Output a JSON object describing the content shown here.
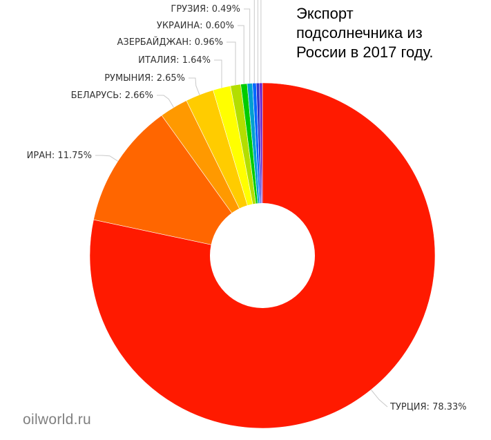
{
  "chart_data": {
    "type": "pie",
    "donut": true,
    "title_lines": [
      "Экспорт",
      "подсолнечника из",
      "России в 2017 году."
    ],
    "slices": [
      {
        "label": "ТУРЦИЯ",
        "value": 78.33,
        "value_text": "78.33%",
        "color": "#ff1a00"
      },
      {
        "label": "ИРАН",
        "value": 11.75,
        "value_text": "11.75%",
        "color": "#ff6600"
      },
      {
        "label": "БЕЛАРУСЬ",
        "value": 2.66,
        "value_text": "2.66%",
        "color": "#ff9900"
      },
      {
        "label": "РУМЫНИЯ",
        "value": 2.65,
        "value_text": "2.65%",
        "color": "#ffcc00"
      },
      {
        "label": "ИТАЛИЯ",
        "value": 1.64,
        "value_text": "1.64%",
        "color": "#ffff00"
      },
      {
        "label": "АЗЕРБАЙДЖАН",
        "value": 0.96,
        "value_text": "0.96%",
        "color": "#b3de00"
      },
      {
        "label": "УКРАИНА",
        "value": 0.6,
        "value_text": "0.60%",
        "color": "#00cc00"
      },
      {
        "label": "ГРУЗИЯ",
        "value": 0.49,
        "value_text": "0.49%",
        "color": "#00a0d0"
      },
      {
        "label": "",
        "value": 0.35,
        "value_text": "",
        "color": "#0066ff"
      },
      {
        "label": "",
        "value": 0.3,
        "value_text": "",
        "color": "#3333cc"
      },
      {
        "label": "",
        "value": 0.27,
        "value_text": "",
        "color": "#6622cc"
      }
    ]
  },
  "watermark": "oilworld.ru"
}
